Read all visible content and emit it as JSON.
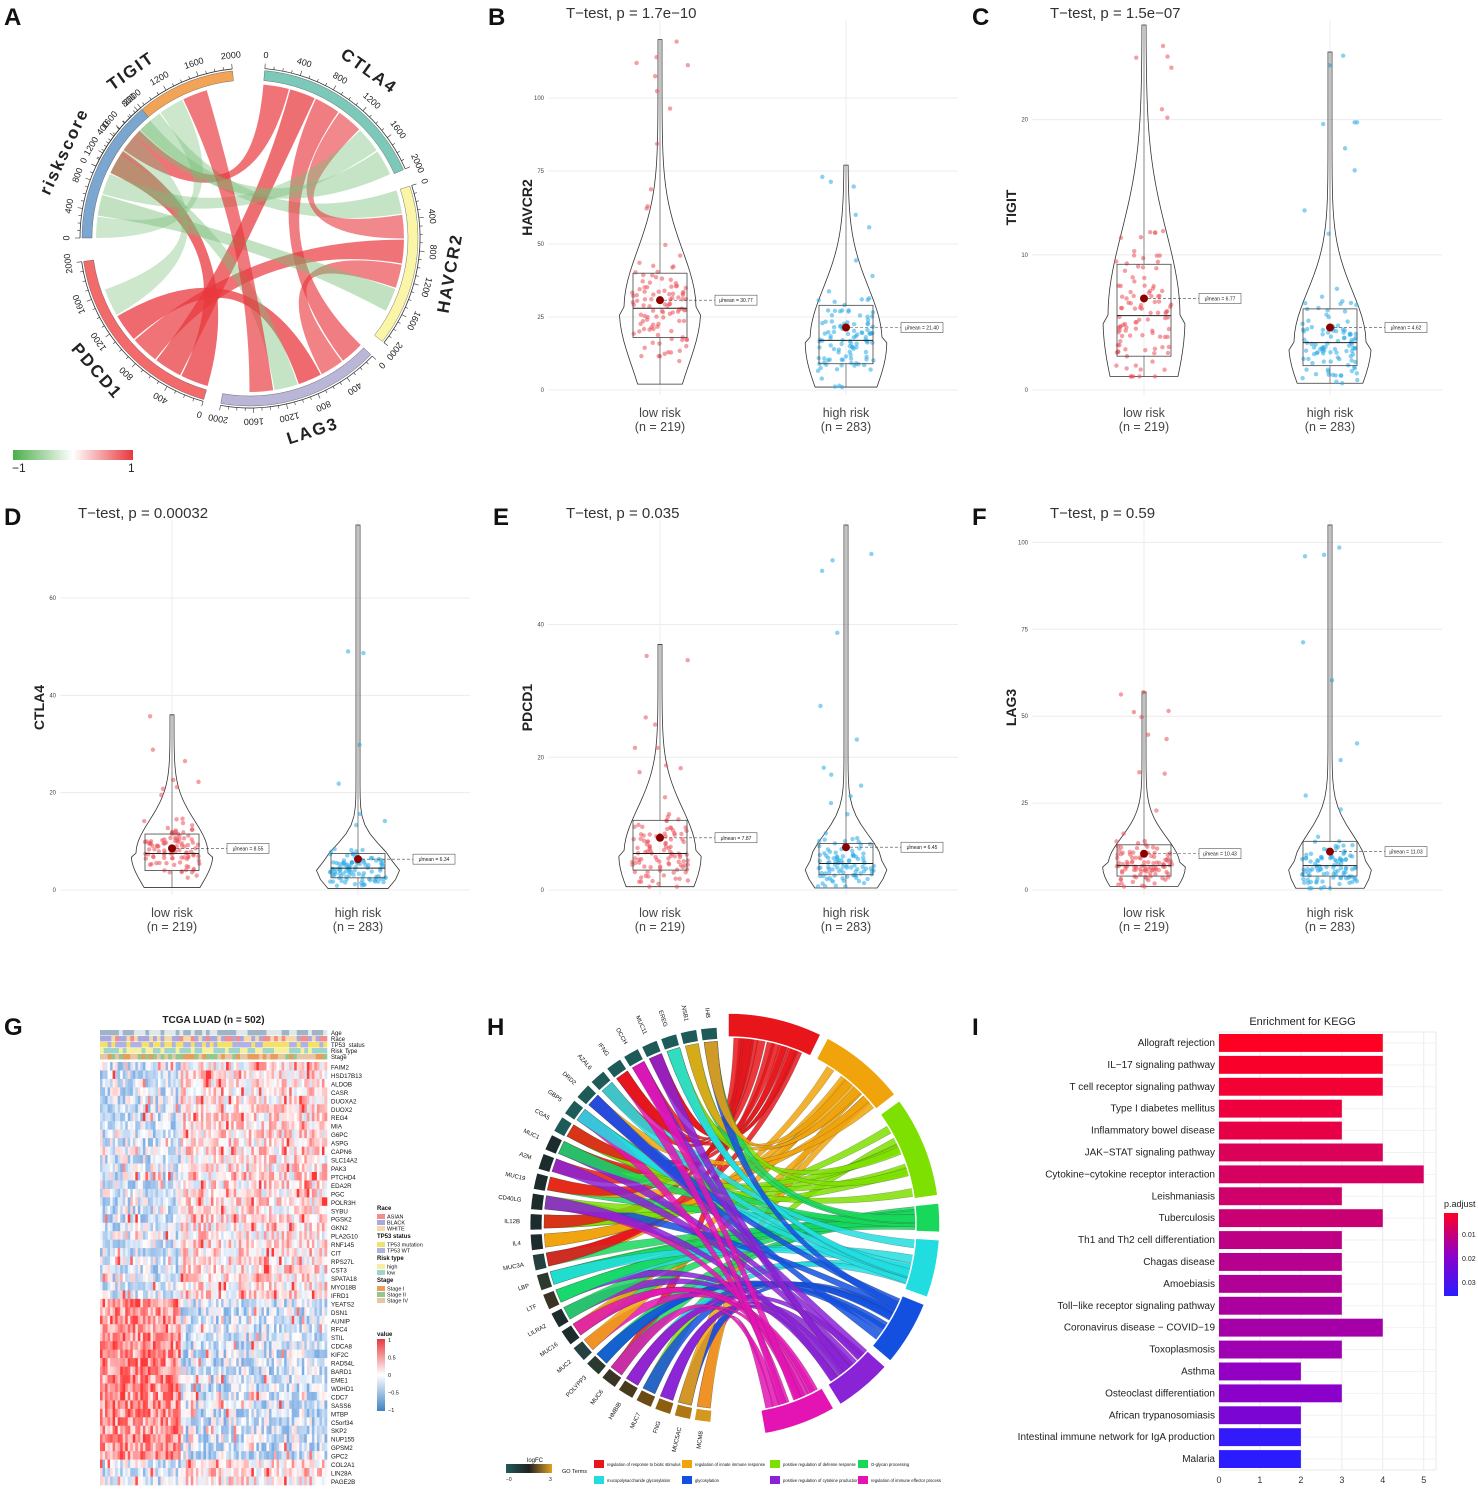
{
  "panels": {
    "a": "A",
    "b": "B",
    "c": "C",
    "d": "D",
    "e": "E",
    "f": "F",
    "g": "G",
    "h": "H",
    "i": "I"
  },
  "chord": {
    "sectors": [
      {
        "name": "TIGIT",
        "color": "#f2a456",
        "ticks": [
          "0",
          "400",
          "800",
          "1200",
          "1600",
          "2000"
        ]
      },
      {
        "name": "CTLA4",
        "color": "#7cc8b9",
        "ticks": [
          "0",
          "400",
          "800",
          "1200",
          "1600",
          "2000"
        ]
      },
      {
        "name": "HAVCR2",
        "color": "#fbf6a7",
        "ticks": [
          "0",
          "400",
          "800",
          "1200",
          "1600",
          "2000"
        ]
      },
      {
        "name": "LAG3",
        "color": "#b9b6d8",
        "ticks": [
          "0",
          "400",
          "800",
          "1200",
          "1600",
          "2000"
        ]
      },
      {
        "name": "PDCD1",
        "color": "#f26a6a",
        "ticks": [
          "0",
          "400",
          "800",
          "1200",
          "1600",
          "2000"
        ]
      },
      {
        "name": "riskscore",
        "color": "#7aa6cf",
        "ticks": [
          "0",
          "400",
          "800",
          "1200",
          "1600",
          "2000"
        ]
      }
    ],
    "legend": {
      "min": "−1",
      "max": "1",
      "neg_color": "#4cae4c",
      "pos_color": "#e8383d"
    }
  },
  "violins": [
    {
      "panel": "B",
      "title": "T−test, p = 1.7e−10",
      "ylabel": "HAVCR2",
      "yticks": [
        "0",
        "25",
        "50",
        "75",
        "100"
      ],
      "ymax": 125,
      "groups": [
        {
          "label": "low risk",
          "n": "(n = 219)",
          "mean": 30.77,
          "median": 28,
          "q1": 18,
          "q3": 40,
          "min": 2,
          "max": 120,
          "mean_text": "μ̂mean = 30.77"
        },
        {
          "label": "high risk",
          "n": "(n = 283)",
          "mean": 21.4,
          "median": 17,
          "q1": 9,
          "q3": 29,
          "min": 1,
          "max": 77,
          "mean_text": "μ̂mean = 21.40"
        }
      ]
    },
    {
      "panel": "C",
      "title": "T−test, p = 1.5e−07",
      "ylabel": "TIGIT",
      "yticks": [
        "0",
        "10",
        "20"
      ],
      "ymax": 27,
      "groups": [
        {
          "label": "low risk",
          "n": "(n = 219)",
          "mean": 6.77,
          "median": 5.5,
          "q1": 2.5,
          "q3": 9.3,
          "min": 1,
          "max": 27,
          "mean_text": "μ̂mean = 6.77"
        },
        {
          "label": "high risk",
          "n": "(n = 283)",
          "mean": 4.62,
          "median": 3.5,
          "q1": 1.8,
          "q3": 6,
          "min": 0.5,
          "max": 25,
          "mean_text": "μ̂mean = 4.62"
        }
      ]
    },
    {
      "panel": "D",
      "title": "T−test, p = 0.00032",
      "ylabel": "CTLA4",
      "yticks": [
        "0",
        "20",
        "40",
        "60"
      ],
      "ymax": 75,
      "groups": [
        {
          "label": "low risk",
          "n": "(n = 219)",
          "mean": 8.55,
          "median": 7.5,
          "q1": 4,
          "q3": 11.5,
          "min": 0.5,
          "max": 36,
          "mean_text": "μ̂mean = 8.55"
        },
        {
          "label": "high risk",
          "n": "(n = 283)",
          "mean": 6.34,
          "median": 4.5,
          "q1": 2.5,
          "q3": 7.5,
          "min": 0.3,
          "max": 75,
          "mean_text": "μ̂mean = 6.34"
        }
      ]
    },
    {
      "panel": "E",
      "title": "T−test, p = 0.035",
      "ylabel": "PDCD1",
      "yticks": [
        "0",
        "20",
        "40"
      ],
      "ymax": 55,
      "groups": [
        {
          "label": "low risk",
          "n": "(n = 219)",
          "mean": 7.87,
          "median": 5.5,
          "q1": 3,
          "q3": 10.5,
          "min": 0.5,
          "max": 37,
          "mean_text": "μ̂mean = 7.87"
        },
        {
          "label": "high risk",
          "n": "(n = 283)",
          "mean": 6.45,
          "median": 4,
          "q1": 2.3,
          "q3": 7,
          "min": 0.3,
          "max": 55,
          "mean_text": "μ̂mean = 6.45"
        }
      ]
    },
    {
      "panel": "F",
      "title": "T−test, p = 0.59",
      "ylabel": "LAG3",
      "yticks": [
        "0",
        "25",
        "50",
        "75",
        "100"
      ],
      "ymax": 105,
      "groups": [
        {
          "label": "low risk",
          "n": "(n = 219)",
          "mean": 10.43,
          "median": 7,
          "q1": 4,
          "q3": 13,
          "min": 1,
          "max": 57,
          "mean_text": "μ̂mean = 10.43"
        },
        {
          "label": "high risk",
          "n": "(n = 283)",
          "mean": 11.03,
          "median": 7,
          "q1": 4,
          "q3": 14,
          "min": 0.5,
          "max": 105,
          "mean_text": "μ̂mean = 11.03"
        }
      ]
    }
  ],
  "heatmap": {
    "title": "TCGA LUAD (n = 502)",
    "annotations": [
      "Age",
      "Race",
      "TP53_status",
      "Risk_type",
      "Stage"
    ],
    "genes": [
      "FAIM2",
      "HSD17B13",
      "ALDOB",
      "CASR",
      "DUOXA2",
      "DUOX2",
      "REG4",
      "MIA",
      "G6PC",
      "ASPG",
      "CAPN6",
      "SLC14A2",
      "PAK3",
      "PTCHD4",
      "EDA2R",
      "PGC",
      "POLR3H",
      "SYBU",
      "PGSK2",
      "GKN2",
      "PLA2G10",
      "RNF145",
      "CIT",
      "RPS27L",
      "CST3",
      "SPATA18",
      "MYO18B",
      "IFRD1",
      "YEATS2",
      "DSN1",
      "AUNIP",
      "RFC4",
      "STIL",
      "CDCA8",
      "KIF2C",
      "RAD54L",
      "BARD1",
      "EME1",
      "WDHD1",
      "CDC7",
      "SASS6",
      "MTBP",
      "C5orf34",
      "SKP2",
      "NUP155",
      "GPSM2",
      "GPC2",
      "COL2A1",
      "LIN28A",
      "PAGE2B"
    ],
    "legend_groups": [
      {
        "title": "Race",
        "items": [
          {
            "label": "ASIAN",
            "color": "#f28e8e"
          },
          {
            "label": "BLACK",
            "color": "#a9a9e0"
          },
          {
            "label": "WHITE",
            "color": "#f5d9a6"
          }
        ]
      },
      {
        "title": "TP53 status",
        "items": [
          {
            "label": "TP53 mutation",
            "color": "#f2e26b"
          },
          {
            "label": "TP53 WT",
            "color": "#b1b1e2"
          }
        ]
      },
      {
        "title": "Risk type",
        "items": [
          {
            "label": "high",
            "color": "#f5ef9e"
          },
          {
            "label": "low",
            "color": "#9ed4c9"
          }
        ]
      },
      {
        "title": "Stage",
        "items": [
          {
            "label": "Stage I",
            "color": "#e89d5a"
          },
          {
            "label": "Stage II",
            "color": "#94c78f"
          },
          {
            "label": "Stage IV",
            "color": "#e4c7a4"
          }
        ]
      }
    ],
    "value_legend": {
      "title": "value",
      "ticks": [
        "1",
        "0.5",
        "0",
        "−0.5",
        "−1"
      ]
    }
  },
  "go_chord": {
    "genes": [
      "MCM8",
      "MUC5AC",
      "FNG",
      "MUC7",
      "HMBIB",
      "MUC6",
      "POLYPP3",
      "MUC2",
      "MUC16",
      "LILRA2",
      "LTF",
      "LBP",
      "MUC3A",
      "IL4",
      "IL12B",
      "CD40LG",
      "MUC19",
      "A2M",
      "MUC1",
      "CGA5",
      "GBP5",
      "DRD2",
      "AZAL6",
      "IFNG",
      "OCCH",
      "MUC11",
      "EREG",
      "RNSB1",
      "IHB"
    ],
    "terms": [
      {
        "label": "regulation of response to biotic stimulus",
        "color": "#e8151b"
      },
      {
        "label": "regulation of innate immune response",
        "color": "#f0a30a"
      },
      {
        "label": "positive regulation of defense response",
        "color": "#7ee000"
      },
      {
        "label": "O-glycan processing",
        "color": "#18d85c"
      },
      {
        "label": "mucopolysaccharide glycosylation",
        "color": "#22dde0"
      },
      {
        "label": "glycosylation",
        "color": "#1450e0"
      },
      {
        "label": "positive regulation of cytokine production",
        "color": "#8a22d6"
      },
      {
        "label": "regulation of immune effector process",
        "color": "#e414b4"
      }
    ],
    "legend_title": "logFC",
    "logfc_min": "−0",
    "logfc_max": "3",
    "terms_title": "GO Terms"
  },
  "chart_data": [
    {
      "type": "bar",
      "title": "Enrichment for KEGG",
      "xlabel": "",
      "ylabel": "",
      "categories": [
        "Allograft rejection",
        "IL−17 signaling pathway",
        "T cell receptor signaling pathway",
        "Type I diabetes mellitus",
        "Inflammatory bowel disease",
        "JAK−STAT signaling pathway",
        "Cytokine−cytokine receptor interaction",
        "Leishmaniasis",
        "Tuberculosis",
        "Th1 and Th2 cell differentiation",
        "Chagas disease",
        "Amoebiasis",
        "Toll−like receptor signaling pathway",
        "Coronavirus disease − COVID−19",
        "Toxoplasmosis",
        "Asthma",
        "Osteoclast differentiation",
        "African trypanosomiasis",
        "Intestinal immune network for IgA production",
        "Malaria"
      ],
      "values": [
        4,
        4,
        4,
        3,
        3,
        4,
        5,
        3,
        4,
        3,
        3,
        3,
        3,
        4,
        3,
        2,
        3,
        2,
        2,
        2
      ],
      "p_adjust": [
        0.002,
        0.003,
        0.004,
        0.005,
        0.006,
        0.008,
        0.009,
        0.01,
        0.011,
        0.013,
        0.014,
        0.015,
        0.016,
        0.017,
        0.018,
        0.02,
        0.021,
        0.023,
        0.032,
        0.033
      ],
      "xlim": [
        0,
        5.3
      ],
      "xticks": [
        "0",
        "1",
        "2",
        "3",
        "4",
        "5"
      ],
      "legend": {
        "title": "p.adjust",
        "ticks": [
          "0.01",
          "0.02",
          "0.03"
        ],
        "colors": [
          "#ff0022",
          "#8f00c8",
          "#2a1cff"
        ]
      }
    }
  ]
}
